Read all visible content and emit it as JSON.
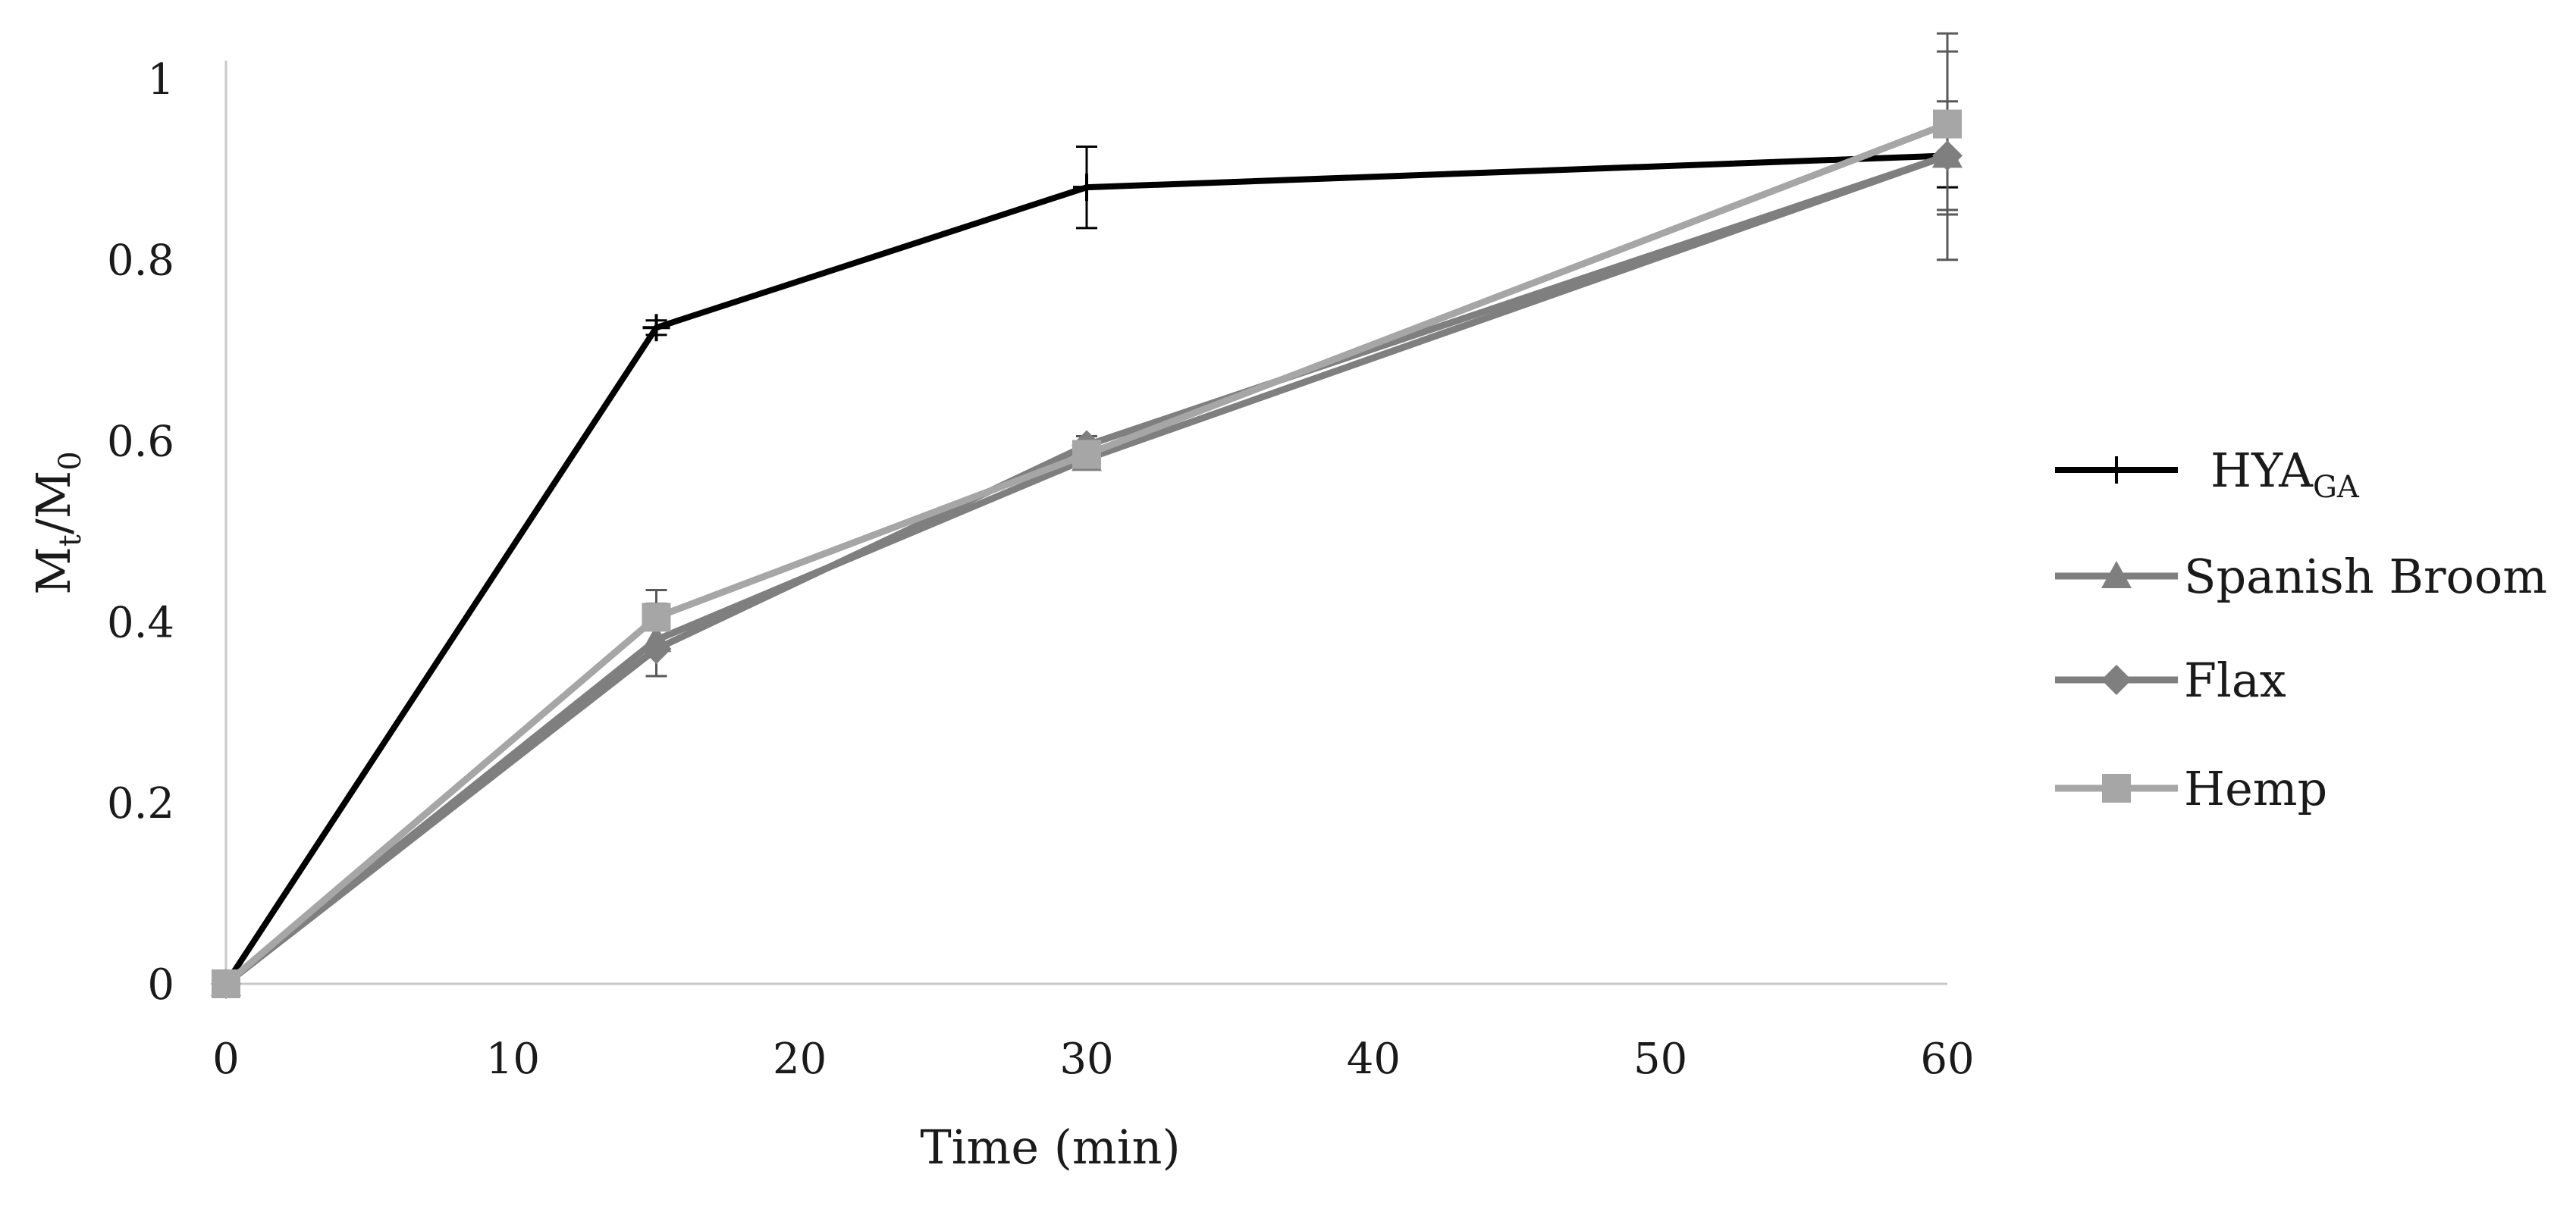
{
  "chart_data": {
    "type": "line",
    "title": "",
    "xlabel": "Time (min)",
    "ylabel_main": "M",
    "ylabel_sub1": "t",
    "ylabel_slash": "/M",
    "ylabel_sub2": "0",
    "xlim": [
      0,
      60
    ],
    "ylim": [
      0,
      1.02
    ],
    "x_ticks": [
      0,
      10,
      20,
      30,
      40,
      50,
      60
    ],
    "y_ticks": [
      0,
      0.2,
      0.4,
      0.6,
      0.8,
      1
    ],
    "x_tick_labels": [
      "0",
      "10",
      "20",
      "30",
      "40",
      "50",
      "60"
    ],
    "y_tick_labels": [
      "0",
      "0.2",
      "0.4",
      "0.6",
      "0.8",
      "1"
    ],
    "grid": false,
    "legend_position": "right",
    "x": [
      0,
      15,
      30,
      60
    ],
    "series": [
      {
        "name": "HYA",
        "name_sub": "GA",
        "values": [
          0,
          0.725,
          0.88,
          0.915
        ],
        "errors": [
          0,
          0.008,
          0.045,
          0.035
        ],
        "color": "#000000",
        "marker": "plus"
      },
      {
        "name": "Spanish Broom",
        "values": [
          0,
          0.38,
          0.58,
          0.915
        ],
        "errors": [
          0,
          0.04,
          0.01,
          0.115
        ],
        "color": "#7f7f7f",
        "marker": "triangle"
      },
      {
        "name": "Flax",
        "values": [
          0,
          0.37,
          0.595,
          0.915
        ],
        "errors": [
          0,
          0.03,
          0.01,
          0.06
        ],
        "color": "#7f7f7f",
        "marker": "diamond"
      },
      {
        "name": "Hemp",
        "values": [
          0,
          0.405,
          0.585,
          0.95
        ],
        "errors": [
          0,
          0.03,
          0.01,
          0.1
        ],
        "color": "#a6a6a6",
        "marker": "square"
      }
    ]
  }
}
